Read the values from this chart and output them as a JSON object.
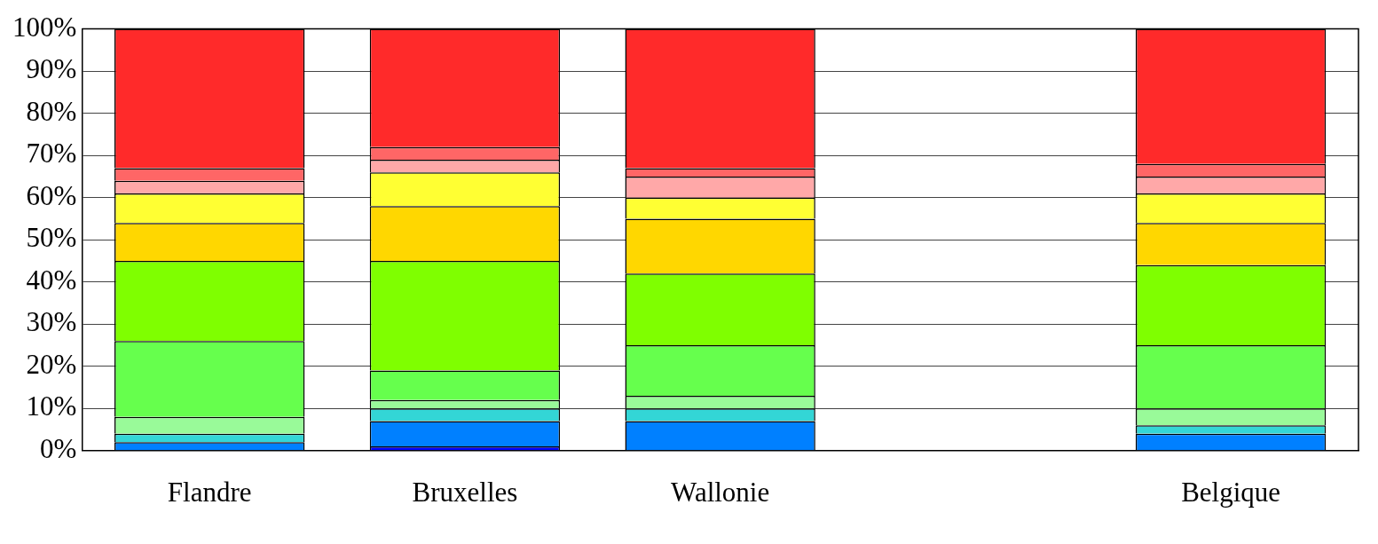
{
  "chart_data": {
    "type": "bar",
    "stacked": true,
    "categories": [
      "Flandre",
      "Bruxelles",
      "Wallonie",
      null,
      "Belgique"
    ],
    "series": [
      {
        "color": "#0000ff",
        "values": [
          null,
          1,
          null,
          null,
          null
        ]
      },
      {
        "color": "#0080ff",
        "values": [
          2,
          6,
          7,
          null,
          4
        ]
      },
      {
        "color": "#33d6d6",
        "values": [
          2,
          3,
          3,
          null,
          2
        ]
      },
      {
        "color": "#99fa99",
        "values": [
          4,
          2,
          3,
          null,
          4
        ]
      },
      {
        "color": "#66ff4d",
        "values": [
          18,
          7,
          12,
          null,
          15
        ]
      },
      {
        "color": "#7fff00",
        "values": [
          19,
          26,
          17,
          null,
          19
        ]
      },
      {
        "color": "#ffd700",
        "values": [
          9,
          13,
          13,
          null,
          10
        ]
      },
      {
        "color": "#ffff33",
        "values": [
          7,
          8,
          5,
          null,
          7
        ]
      },
      {
        "color": "#ffa8a8",
        "values": [
          3,
          3,
          5,
          null,
          4
        ]
      },
      {
        "color": "#ff6666",
        "values": [
          3,
          3,
          2,
          null,
          3
        ]
      },
      {
        "color": "#ff2a2a",
        "values": [
          33,
          28,
          33,
          null,
          32
        ]
      }
    ],
    "ylim": [
      0,
      100
    ],
    "yticks": [
      {
        "value": 0,
        "label": "0%"
      },
      {
        "value": 10,
        "label": "10%"
      },
      {
        "value": 20,
        "label": "20%"
      },
      {
        "value": 30,
        "label": "30%"
      },
      {
        "value": 40,
        "label": "40%"
      },
      {
        "value": 50,
        "label": "50%"
      },
      {
        "value": 60,
        "label": "60%"
      },
      {
        "value": 70,
        "label": "70%"
      },
      {
        "value": 80,
        "label": "80%"
      },
      {
        "value": 90,
        "label": "90%"
      },
      {
        "value": 100,
        "label": "100%"
      }
    ],
    "grid": "y",
    "legend": false
  }
}
